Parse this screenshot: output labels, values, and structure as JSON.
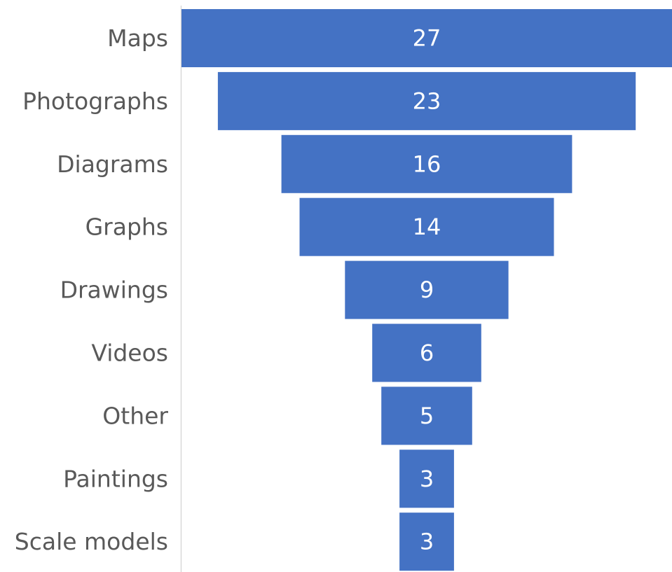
{
  "chart_data": {
    "type": "bar",
    "orientation": "horizontal",
    "layout": "funnel",
    "categories": [
      "Maps",
      "Photographs",
      "Diagrams",
      "Graphs",
      "Drawings",
      "Videos",
      "Other",
      "Paintings",
      "Scale models"
    ],
    "values": [
      27,
      23,
      16,
      14,
      9,
      6,
      5,
      3,
      3
    ],
    "data_labels": [
      "27",
      "23",
      "16",
      "14",
      "9",
      "6",
      "5",
      "3",
      "3"
    ],
    "title": "",
    "xlabel": "",
    "ylabel": "",
    "legend": "none",
    "grid": false
  },
  "colors": {
    "bar": "#4472C4",
    "axis": "#D9D9D9",
    "category_text": "#595959",
    "value_text": "#FFFFFF"
  }
}
